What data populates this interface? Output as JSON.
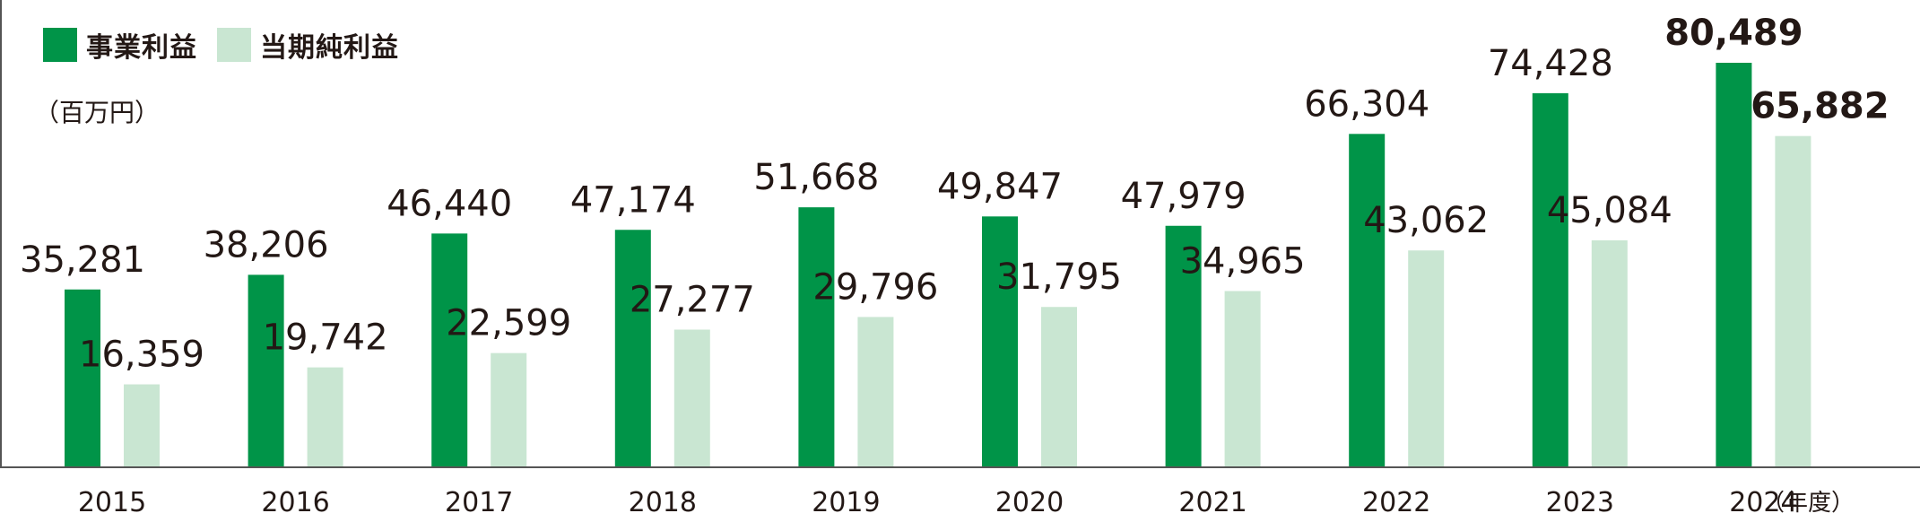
{
  "legend": {
    "series1_label": "事業利益",
    "series2_label": "当期純利益"
  },
  "unit_label": "（百万円）",
  "x_unit_label": "（年度）",
  "colors": {
    "series1": "#009448",
    "series2": "#c9e6d2",
    "text": "#231815",
    "axis": "#555555"
  },
  "chart_data": {
    "type": "bar",
    "categories": [
      "2015",
      "2016",
      "2017",
      "2018",
      "2019",
      "2020",
      "2021",
      "2022",
      "2023",
      "2024"
    ],
    "series": [
      {
        "name": "事業利益",
        "values": [
          35281,
          38206,
          46440,
          47174,
          51668,
          49847,
          47979,
          66304,
          74428,
          80489
        ],
        "labels": [
          "35,281",
          "38,206",
          "46,440",
          "47,174",
          "51,668",
          "49,847",
          "47,979",
          "66,304",
          "74,428",
          "80,489"
        ]
      },
      {
        "name": "当期純利益",
        "values": [
          16359,
          19742,
          22599,
          27277,
          29796,
          31795,
          34965,
          43062,
          45084,
          65882
        ],
        "labels": [
          "16,359",
          "19,742",
          "22,599",
          "27,277",
          "29,796",
          "31,795",
          "34,965",
          "43,062",
          "45,084",
          "65,882"
        ]
      }
    ],
    "highlight_category": "2024",
    "ylabel": "（百万円）",
    "xlabel": "（年度）",
    "ylim": [
      0,
      88000
    ],
    "grid": false,
    "legend_position": "top-left"
  }
}
